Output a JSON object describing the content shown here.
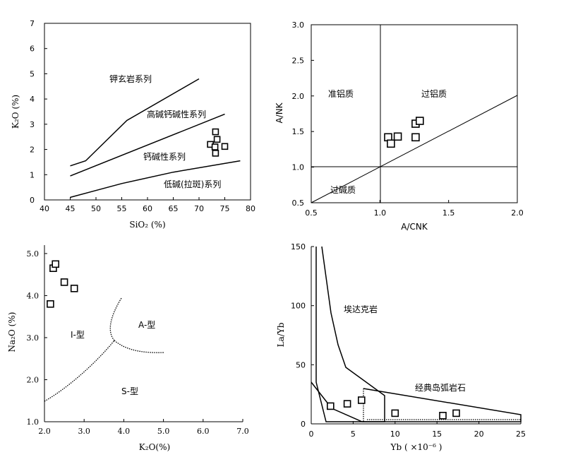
{
  "chart_data": [
    {
      "type": "scatter",
      "xlabel": "SiO₂ (%)",
      "ylabel": "K₂O (%)",
      "xlim": [
        40,
        80
      ],
      "ylim": [
        0,
        7
      ],
      "xticks": [
        "40",
        "45",
        "50",
        "55",
        "60",
        "65",
        "70",
        "75",
        "80"
      ],
      "yticks": [
        "0",
        "1",
        "2",
        "3",
        "4",
        "5",
        "6",
        "7"
      ],
      "fields": [
        "钾玄岩系列",
        "高碱钙碱性系列",
        "钙碱性系列",
        "低碱(拉斑)系列"
      ],
      "boundaries": [
        [
          [
            45,
            1.35
          ],
          [
            48,
            1.55
          ],
          [
            56,
            3.15
          ],
          [
            70,
            4.8
          ]
        ],
        [
          [
            45,
            0.95
          ],
          [
            75,
            3.4
          ]
        ],
        [
          [
            45,
            0.1
          ],
          [
            55,
            0.65
          ],
          [
            65,
            1.1
          ],
          [
            78,
            1.55
          ]
        ]
      ],
      "points": [
        [
          73.2,
          2.7
        ],
        [
          73.5,
          2.4
        ],
        [
          72.2,
          2.2
        ],
        [
          73.1,
          2.1
        ],
        [
          75.0,
          2.12
        ],
        [
          73.2,
          1.85
        ]
      ]
    },
    {
      "type": "scatter",
      "xlabel": "A/CNK",
      "ylabel": "A/NK",
      "xlim": [
        0.5,
        2.0
      ],
      "ylim": [
        0.5,
        3.0
      ],
      "xticks": [
        "0.5",
        "1.0",
        "1.5",
        "2.0"
      ],
      "yticks": [
        "0.5",
        "1.0",
        "1.5",
        "2.0",
        "2.5",
        "3.0"
      ],
      "fields": [
        "准铝质",
        "过铝质",
        "过碱质"
      ],
      "points": [
        [
          1.06,
          1.42
        ],
        [
          1.08,
          1.33
        ],
        [
          1.13,
          1.43
        ],
        [
          1.26,
          1.42
        ],
        [
          1.26,
          1.61
        ],
        [
          1.29,
          1.65
        ]
      ]
    },
    {
      "type": "scatter",
      "xlabel": "K₂O(%)",
      "ylabel": "Na₂O (%)",
      "xlim": [
        2.0,
        7.0
      ],
      "ylim": [
        1.0,
        5.2
      ],
      "xticks": [
        "2.0",
        "3.0",
        "4.0",
        "5.0",
        "6.0",
        "7.0"
      ],
      "yticks": [
        "1.0",
        "2.0",
        "3.0",
        "4.0",
        "5.0"
      ],
      "fields": [
        "I-型",
        "A-型",
        "S-型"
      ],
      "points": [
        [
          2.15,
          3.8
        ],
        [
          2.22,
          4.65
        ],
        [
          2.28,
          4.75
        ],
        [
          2.5,
          4.32
        ],
        [
          2.75,
          4.17
        ]
      ]
    },
    {
      "type": "scatter",
      "xlabel": "Yb ( ×10⁻⁶ )",
      "ylabel": "La/Yb",
      "xlim": [
        0,
        25
      ],
      "ylim": [
        0,
        150
      ],
      "xticks": [
        "0",
        "5",
        "10",
        "15",
        "20",
        "25"
      ],
      "yticks": [
        "0",
        "50",
        "100",
        "150"
      ],
      "fields": [
        "埃达克岩",
        "经典岛弧岩石"
      ],
      "points": [
        [
          2.3,
          15
        ],
        [
          4.3,
          17
        ],
        [
          6.0,
          20
        ],
        [
          10.0,
          9
        ],
        [
          15.7,
          7
        ],
        [
          17.3,
          9
        ]
      ]
    }
  ]
}
